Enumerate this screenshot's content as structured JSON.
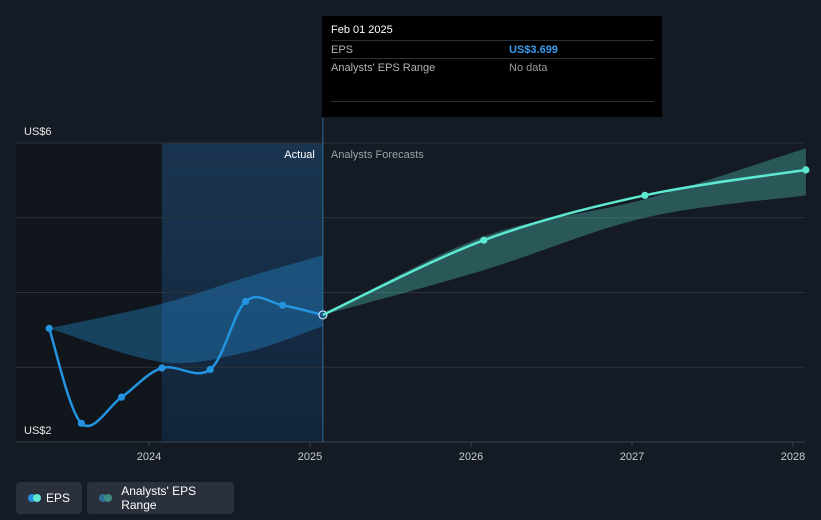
{
  "chart_data": {
    "type": "line",
    "title": "",
    "xlabel": "",
    "ylabel": "",
    "ylim": [
      2,
      6
    ],
    "y_ticks": [
      2,
      3,
      4,
      5,
      6
    ],
    "y_tick_labels": [
      {
        "value": 6,
        "label": "US$6"
      },
      {
        "value": 2,
        "label": "US$2"
      }
    ],
    "x_ticks": [
      {
        "value": 2024.0,
        "label": "2024"
      },
      {
        "value": 2025.0,
        "label": "2025"
      },
      {
        "value": 2026.0,
        "label": "2026"
      },
      {
        "value": 2027.0,
        "label": "2027"
      },
      {
        "value": 2028.0,
        "label": "2028"
      }
    ],
    "xlim": [
      2022.8,
      2028.08
    ],
    "divider_x": 2025.08,
    "highlight_start_x": 2024.08,
    "sections": {
      "actual": "Actual",
      "forecast": "Analysts Forecasts"
    },
    "series": [
      {
        "name": "EPS",
        "kind": "actual",
        "color": "#2394df",
        "points": [
          [
            2023.38,
            3.52
          ],
          [
            2023.58,
            2.25
          ],
          [
            2023.83,
            2.6
          ],
          [
            2024.08,
            2.99
          ],
          [
            2024.38,
            2.97
          ],
          [
            2024.6,
            3.88
          ],
          [
            2024.83,
            3.83
          ],
          [
            2025.08,
            3.7
          ]
        ]
      },
      {
        "name": "EPS Forecast",
        "kind": "forecast",
        "color": "#5de8d2",
        "points": [
          [
            2025.08,
            3.7
          ],
          [
            2026.08,
            4.7
          ],
          [
            2027.08,
            5.3
          ],
          [
            2028.08,
            5.64
          ]
        ]
      }
    ],
    "ranges": [
      {
        "name": "Analysts' EPS Range (past)",
        "color": "#2394df",
        "upper": [
          [
            2023.38,
            3.52
          ],
          [
            2024.08,
            3.85
          ],
          [
            2024.6,
            4.2
          ],
          [
            2025.08,
            4.5
          ]
        ],
        "lower": [
          [
            2023.38,
            3.52
          ],
          [
            2024.08,
            3.07
          ],
          [
            2024.6,
            3.2
          ],
          [
            2025.08,
            3.55
          ]
        ]
      },
      {
        "name": "Analysts' EPS Range (forecast)",
        "color": "#5de8d2",
        "upper": [
          [
            2025.08,
            3.7
          ],
          [
            2026.08,
            4.75
          ],
          [
            2027.08,
            5.25
          ],
          [
            2028.08,
            5.93
          ]
        ],
        "lower": [
          [
            2025.08,
            3.7
          ],
          [
            2026.08,
            4.3
          ],
          [
            2027.08,
            5.0
          ],
          [
            2028.08,
            5.3
          ]
        ]
      }
    ]
  },
  "tooltip": {
    "date": "Feb 01 2025",
    "rows": [
      {
        "label": "EPS",
        "value": "US$3.699"
      },
      {
        "label": "Analysts' EPS Range",
        "value": "No data"
      }
    ]
  },
  "legend": {
    "items": [
      {
        "label": "EPS",
        "colors": [
          "#2394df",
          "#5de8d2"
        ]
      },
      {
        "label": "Analysts' EPS Range",
        "colors": [
          "#2f6e9a",
          "#3f8a80"
        ]
      }
    ]
  }
}
